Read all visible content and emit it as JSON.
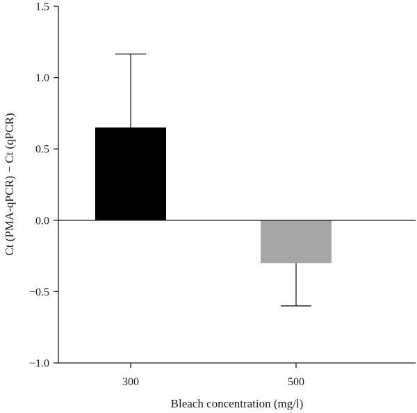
{
  "chart_data": {
    "type": "bar",
    "title": "",
    "xlabel": "Bleach concentration (mg/l)",
    "ylabel": "Ct (PMA-qPCR) − Ct (qPCR)",
    "categories": [
      "300",
      "500"
    ],
    "values": [
      0.65,
      -0.3
    ],
    "error_upper": [
      1.165,
      null
    ],
    "error_lower": [
      null,
      -0.6
    ],
    "bar_colors": [
      "#000000",
      "#a6a6a6"
    ],
    "ylim": [
      -1.0,
      1.5
    ],
    "yticks": [
      -1.0,
      -0.5,
      0.0,
      0.5,
      1.0,
      1.5
    ],
    "ytick_labels": [
      "−1.0",
      "−0.5",
      "0.0",
      "0.5",
      "1.0",
      "1.5"
    ],
    "grid": false,
    "legend": "none"
  }
}
